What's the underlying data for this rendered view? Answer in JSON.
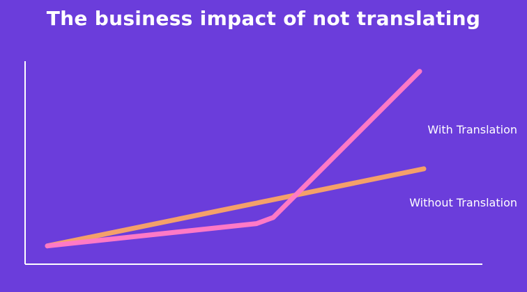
{
  "title": "The business impact of not translating",
  "colors": {
    "background": "#6b3ddb",
    "axis": "#ffffff",
    "with_translation": "#ff79c6",
    "without_translation": "#f4a06a",
    "label_text": "#ffffff"
  },
  "chart_data": {
    "type": "line",
    "title": "The business impact of not translating",
    "xlabel": "",
    "ylabel": "",
    "xlim": [
      0,
      10
    ],
    "ylim": [
      0,
      10
    ],
    "grid": false,
    "legend": "inline-right",
    "series": [
      {
        "name": "With Translation",
        "color": "#ff79c6",
        "x": [
          0,
          5.0,
          5.4,
          8.9
        ],
        "y": [
          0.9,
          2.0,
          2.3,
          9.5
        ]
      },
      {
        "name": "Without Translation",
        "color": "#f4a06a",
        "x": [
          0,
          9.0
        ],
        "y": [
          0.9,
          4.7
        ]
      }
    ]
  }
}
